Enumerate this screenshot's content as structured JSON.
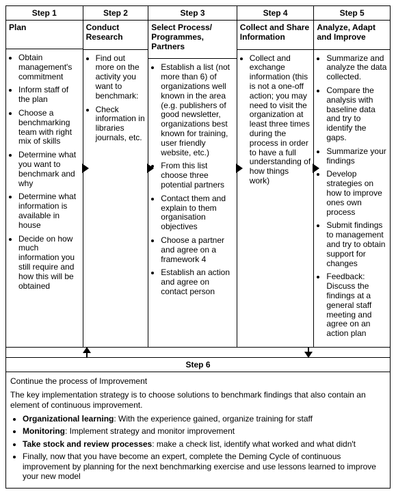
{
  "steps": [
    {
      "head": "Step 1",
      "title": "Plan",
      "items": [
        "Obtain management's commitment",
        "Inform staff of the plan",
        "Choose a benchmarking team with right mix of skills",
        "Determine what you want to benchmark and why",
        "Determine what information is available in house",
        "Decide on how much information you still require and how this will be obtained"
      ]
    },
    {
      "head": "Step 2",
      "title": "Conduct Research",
      "items": [
        "Find out more on the activity you want to benchmark:",
        "Check information in libraries journals, etc."
      ]
    },
    {
      "head": "Step 3",
      "title": "Select Process/ Programmes, Partners",
      "items": [
        "Establish a list (not more than 6) of organizations well known in the area (e.g. publishers of good newsletter, organizations best known for training, user friendly website, etc.)",
        "From this list choose three potential partners",
        "Contact them and explain to them organisation objectives",
        "Choose a partner and agree on a framework 4",
        "Establish an action and agree on contact person"
      ]
    },
    {
      "head": "Step 4",
      "title": "Collect and Share Information",
      "items": [
        "Collect and exchange information (this is not a one-off action; you may need to visit the organization at least three times during the process in order to have a full understanding of how things work)"
      ]
    },
    {
      "head": "Step 5",
      "title": "Analyze, Adapt and Improve",
      "items": [
        "Summarize and analyze the data collected.",
        "Compare the analysis with baseline data and try to identify the gaps.",
        "Summarize your findings",
        "Develop strategies on how to improve ones own process",
        "Submit findings to management and try to obtain support for changes",
        "Feedback: Discuss the findings  at a general staff meeting and agree on an action plan"
      ]
    }
  ],
  "step6": {
    "head": "Step 6",
    "continue_line": "Continue the process of Improvement",
    "intro": "The key implementation strategy is to choose solutions to benchmark findings that also contain an element of continuous improvement.",
    "bullets": [
      {
        "bold": "Organizational learning",
        "rest": ": With the experience gained, organize training for staff"
      },
      {
        "bold": "Monitoring",
        "rest": ": Implement strategy and monitor improvement"
      },
      {
        "bold": "Take stock and review processes",
        "rest": ": make a check list, identify what worked and what didn't"
      },
      {
        "bold": "",
        "rest": "Finally, now that you have become an expert, complete the Deming Cycle of continuous improvement by planning for the next benchmarking exercise and use lessons learned to improve your new model"
      }
    ]
  },
  "col_widths": [
    "20%",
    "17%",
    "23%",
    "20%",
    "20%"
  ]
}
